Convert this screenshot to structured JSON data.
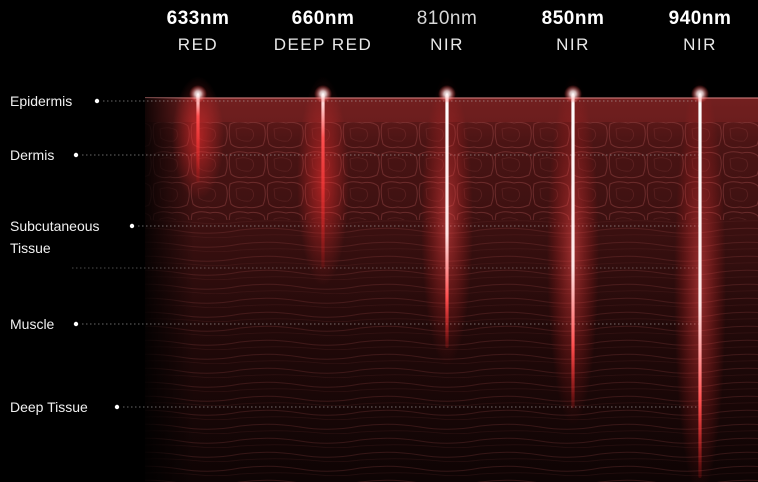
{
  "wavelengths": [
    {
      "nm": "633nm",
      "band": "RED"
    },
    {
      "nm": "660nm",
      "band": "DEEP RED"
    },
    {
      "nm": "810nm",
      "band": "NIR"
    },
    {
      "nm": "850nm",
      "band": "NIR"
    },
    {
      "nm": "940nm",
      "band": "NIR"
    }
  ],
  "layers": [
    {
      "line1": "Epidermis",
      "line2": ""
    },
    {
      "line1": "Dermis",
      "line2": ""
    },
    {
      "line1": "Subcutaneous",
      "line2": "Tissue"
    },
    {
      "line1": "Muscle",
      "line2": ""
    },
    {
      "line1": "Deep Tissue",
      "line2": ""
    }
  ],
  "colors": {
    "background": "#000000",
    "tissue_top": "#5a1616",
    "tissue_bottom": "#120606",
    "red_beam": "#ff2a2a",
    "nir_beam": "#ffffff"
  }
}
